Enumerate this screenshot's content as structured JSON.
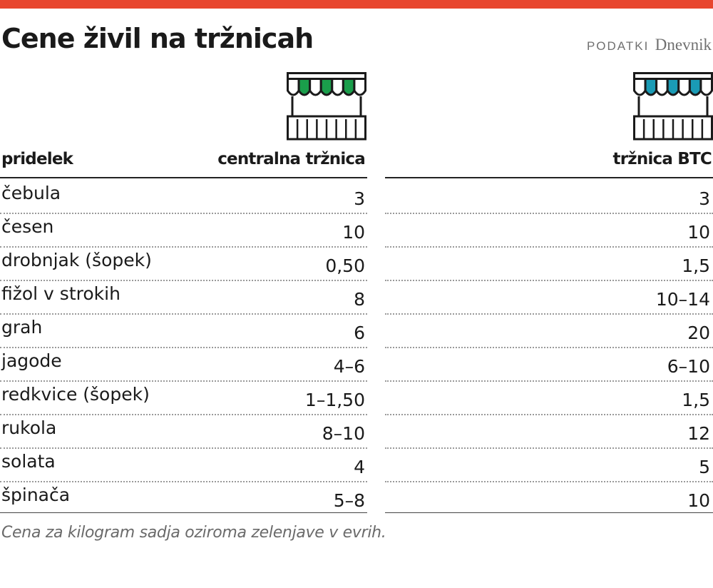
{
  "header": {
    "title": "Cene živil na tržnicah",
    "source_label": "PODATKI",
    "source_name": "Dnevnik",
    "accent_color": "#e8462e"
  },
  "icons": {
    "central_market": {
      "name": "market-stall-green-icon",
      "color": "#1a9e4b"
    },
    "btc_market": {
      "name": "market-stall-blue-icon",
      "color": "#1a9bb5"
    }
  },
  "chart_data": {
    "type": "table",
    "title": "Cene živil na tržnicah",
    "columns": [
      "pridelek",
      "centralna tržnica",
      "tržnica BTC"
    ],
    "rows": [
      {
        "product": "čebula",
        "central": "3",
        "btc": "3"
      },
      {
        "product": "česen",
        "central": "10",
        "btc": "10"
      },
      {
        "product": "drobnjak (šopek)",
        "central": "0,50",
        "btc": "1,5"
      },
      {
        "product": "fižol v strokih",
        "central": "8",
        "btc": "10–14"
      },
      {
        "product": "grah",
        "central": "6",
        "btc": "20"
      },
      {
        "product": "jagode",
        "central": "4–6",
        "btc": "6–10"
      },
      {
        "product": "redkvice (šopek)",
        "central": "1–1,50",
        "btc": "1,5"
      },
      {
        "product": "rukola",
        "central": "8–10",
        "btc": "12"
      },
      {
        "product": "solata",
        "central": "4",
        "btc": "5"
      },
      {
        "product": "špinača",
        "central": "5–8",
        "btc": "10"
      }
    ],
    "note": "Cena za kilogram sadja oziroma zelenjave v evrih."
  }
}
